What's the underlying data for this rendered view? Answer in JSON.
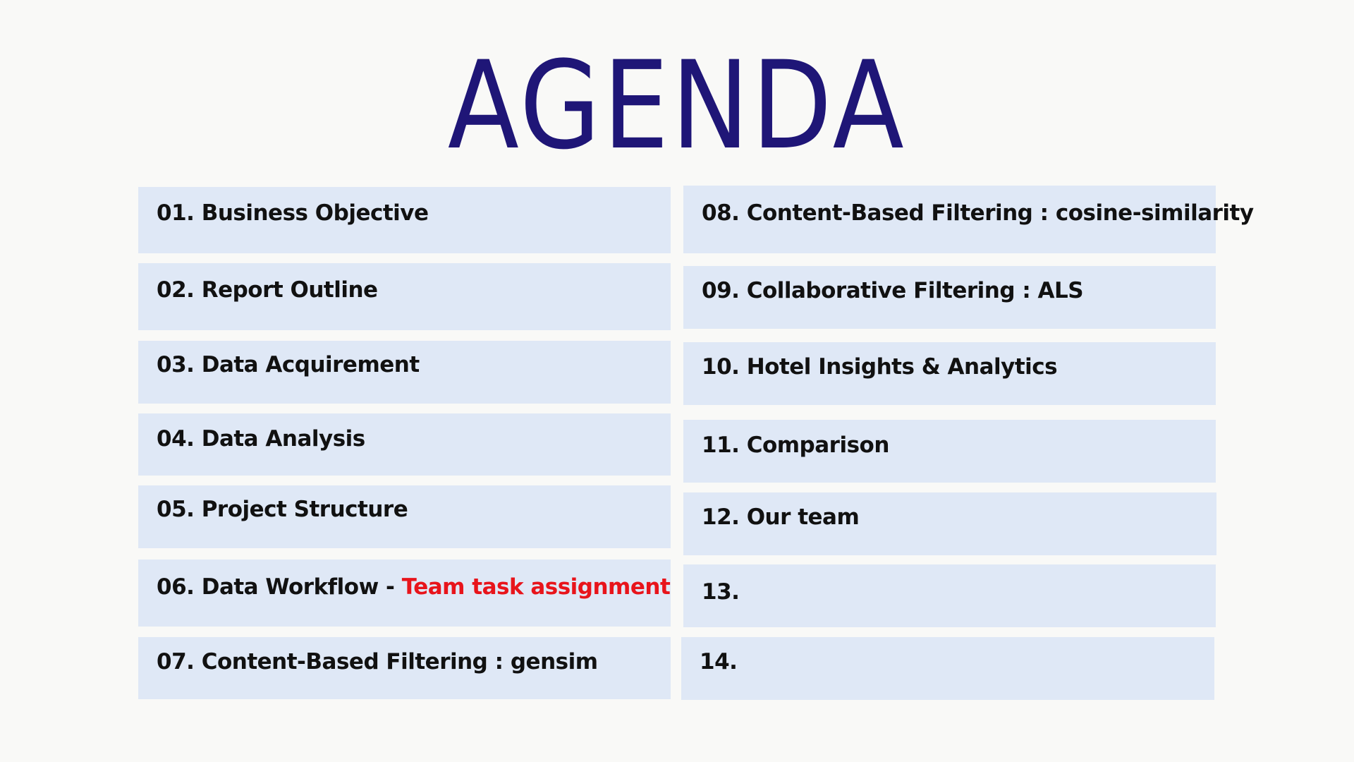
{
  "title": "AGENDA",
  "colors": {
    "title": "#1f1677",
    "item_background": "#dfe8f6",
    "item_text": "#111111",
    "highlight": "#e8141b",
    "page_background": "#f9f9f7"
  },
  "left_items": [
    {
      "label": "01. Business Objective"
    },
    {
      "label": "02. Report Outline"
    },
    {
      "label": "03. Data Acquirement"
    },
    {
      "label": "04. Data Analysis"
    },
    {
      "label": "05. Project Structure"
    },
    {
      "label": "06. Data Workflow - ",
      "highlight": "Team task assignment"
    },
    {
      "label": "07. Content-Based Filtering : gensim"
    }
  ],
  "right_items": [
    {
      "label": "08. Content-Based Filtering : cosine-similarity"
    },
    {
      "label": "09. Collaborative Filtering : ALS"
    },
    {
      "label": "10. Hotel Insights & Analytics"
    },
    {
      "label": "11. Comparison"
    },
    {
      "label": "12. Our team"
    },
    {
      "label": "13."
    },
    {
      "label": "14."
    }
  ]
}
